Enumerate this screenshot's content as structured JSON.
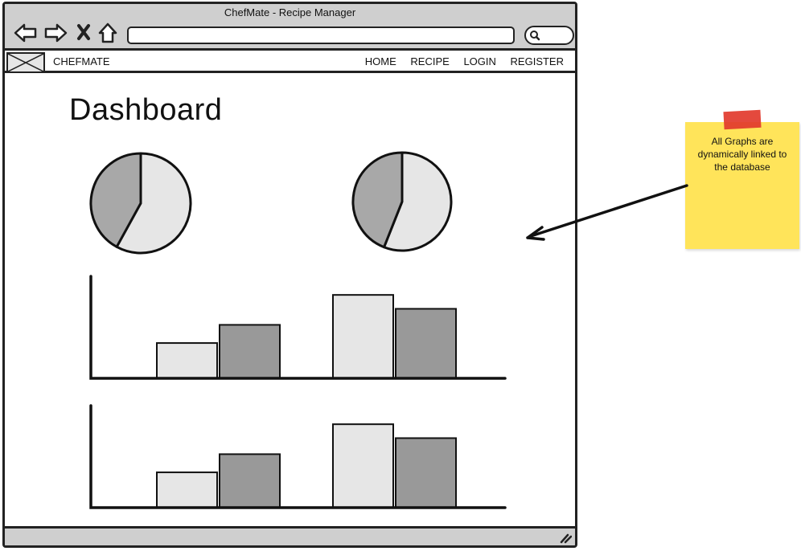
{
  "window": {
    "title": "ChefMate - Recipe Manager"
  },
  "address_bar": {
    "value": ""
  },
  "search": {
    "value": ""
  },
  "navbar": {
    "brand": "CHEFMATE",
    "links": [
      "HOME",
      "RECIPE",
      "LOGIN",
      "REGISTER"
    ]
  },
  "page": {
    "title": "Dashboard"
  },
  "note": {
    "text": "All Graphs are dynamically linked to the database"
  },
  "colors": {
    "light": "#e6e6e6",
    "mid": "#a8a8a8",
    "dark": "#999999",
    "sticky": "#ffe45a",
    "tape": "#e23a2c",
    "chrome": "#cfcfcf"
  },
  "chart_data": [
    {
      "type": "pie",
      "slices": [
        {
          "value": 58
        },
        {
          "value": 42
        }
      ]
    },
    {
      "type": "pie",
      "slices": [
        {
          "value": 56
        },
        {
          "value": 44
        }
      ]
    },
    {
      "type": "bar",
      "ylim": [
        0,
        100
      ],
      "series": [
        {
          "values": [
            33,
            78
          ]
        },
        {
          "values": [
            50,
            65
          ]
        }
      ]
    },
    {
      "type": "bar",
      "ylim": [
        0,
        100
      ],
      "series": [
        {
          "values": [
            33,
            78
          ]
        },
        {
          "values": [
            50,
            65
          ]
        }
      ]
    }
  ]
}
